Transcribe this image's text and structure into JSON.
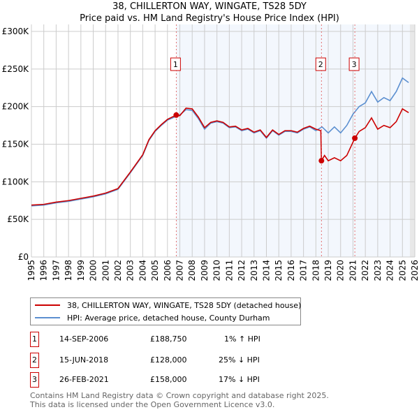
{
  "title": "38, CHILLERTON WAY, WINGATE, TS28 5DY",
  "subtitle": "Price paid vs. HM Land Registry's House Price Index (HPI)",
  "chart_data": {
    "type": "line",
    "title": "38, CHILLERTON WAY, WINGATE, TS28 5DY",
    "ylim": [
      0,
      300000
    ],
    "xlim": [
      1995,
      2026
    ],
    "y_ticks": [
      {
        "v": 0,
        "label": "£0"
      },
      {
        "v": 50000,
        "label": "£50K"
      },
      {
        "v": 100000,
        "label": "£100K"
      },
      {
        "v": 150000,
        "label": "£150K"
      },
      {
        "v": 200000,
        "label": "£200K"
      },
      {
        "v": 250000,
        "label": "£250K"
      },
      {
        "v": 300000,
        "label": "£300K"
      }
    ],
    "x_ticks": [
      "1995",
      "1996",
      "1997",
      "1998",
      "1999",
      "2000",
      "2001",
      "2002",
      "2003",
      "2004",
      "2005",
      "2006",
      "2007",
      "2008",
      "2009",
      "2010",
      "2011",
      "2012",
      "2013",
      "2014",
      "2015",
      "2016",
      "2017",
      "2018",
      "2019",
      "2020",
      "2021",
      "2022",
      "2023",
      "2024",
      "2025",
      "2026"
    ],
    "grid": true,
    "series": [
      {
        "name": "38, CHILLERTON WAY, WINGATE, TS28 5DY (detached house)",
        "color": "#cc0000",
        "x": [
          1995,
          1996,
          1997,
          1998,
          1999,
          2000,
          2001,
          2002,
          2003,
          2004,
          2004.5,
          2005,
          2005.5,
          2006,
          2006.7,
          2007,
          2007.5,
          2008,
          2008.5,
          2009,
          2009.5,
          2010,
          2010.5,
          2011,
          2011.5,
          2012,
          2012.5,
          2013,
          2013.5,
          2014,
          2014.5,
          2015,
          2015.5,
          2016,
          2016.5,
          2017,
          2017.5,
          2018,
          2018.4,
          2018.45,
          2018.7,
          2019,
          2019.5,
          2020,
          2020.5,
          2021.15,
          2021.5,
          2022,
          2022.5,
          2023,
          2023.5,
          2024,
          2024.5,
          2025,
          2025.5
        ],
        "y": [
          69000,
          70000,
          73000,
          75000,
          78000,
          81000,
          85000,
          91000,
          113000,
          136000,
          156000,
          168000,
          176000,
          183000,
          188750,
          188000,
          198000,
          197000,
          186000,
          172000,
          179000,
          181000,
          179000,
          173000,
          174000,
          169000,
          171000,
          166000,
          169000,
          159000,
          169000,
          163000,
          168000,
          168000,
          166000,
          171000,
          174000,
          170000,
          168000,
          128000,
          135000,
          128000,
          132000,
          128000,
          135000,
          158000,
          167000,
          172000,
          185000,
          170000,
          175000,
          172000,
          180000,
          197000,
          192000
        ]
      },
      {
        "name": "HPI: Average price, detached house, County Durham",
        "color": "#5b8fd0",
        "x": [
          1995,
          1996,
          1997,
          1998,
          1999,
          2000,
          2001,
          2002,
          2003,
          2004,
          2004.5,
          2005,
          2005.5,
          2006,
          2006.7,
          2007,
          2007.5,
          2008,
          2008.5,
          2009,
          2009.5,
          2010,
          2010.5,
          2011,
          2011.5,
          2012,
          2012.5,
          2013,
          2013.5,
          2014,
          2014.5,
          2015,
          2015.5,
          2016,
          2016.5,
          2017,
          2017.5,
          2018,
          2018.5,
          2019,
          2019.5,
          2020,
          2020.5,
          2021,
          2021.5,
          2022,
          2022.5,
          2023,
          2023.5,
          2024,
          2024.5,
          2025,
          2025.5
        ],
        "y": [
          68000,
          69000,
          72000,
          74000,
          77000,
          80000,
          84000,
          90000,
          112000,
          135000,
          155000,
          167000,
          175000,
          182000,
          187000,
          189000,
          196000,
          195000,
          184000,
          170000,
          178000,
          180000,
          178000,
          172000,
          173000,
          168000,
          170000,
          165000,
          168000,
          158000,
          168000,
          162000,
          167000,
          167000,
          165000,
          170000,
          173000,
          168000,
          173000,
          165000,
          173000,
          165000,
          175000,
          190000,
          200000,
          205000,
          220000,
          206000,
          212000,
          208000,
          220000,
          238000,
          232000
        ]
      }
    ],
    "sales": [
      {
        "label": "1",
        "x": 2006.71,
        "y": 188750
      },
      {
        "label": "2",
        "x": 2018.45,
        "y": 128000
      },
      {
        "label": "3",
        "x": 2021.15,
        "y": 158000
      }
    ]
  },
  "legend": [
    {
      "label": "38, CHILLERTON WAY, WINGATE, TS28 5DY (detached house)",
      "color": "#cc0000"
    },
    {
      "label": "HPI: Average price, detached house, County Durham",
      "color": "#5b8fd0"
    }
  ],
  "transactions": [
    {
      "num": "1",
      "date": "14-SEP-2006",
      "price": "£188,750",
      "hpi": "1% ↑ HPI"
    },
    {
      "num": "2",
      "date": "15-JUN-2018",
      "price": "£128,000",
      "hpi": "25% ↓ HPI"
    },
    {
      "num": "3",
      "date": "26-FEB-2021",
      "price": "£158,000",
      "hpi": "17% ↓ HPI"
    }
  ],
  "footer": [
    "Contains HM Land Registry data © Crown copyright and database right 2025.",
    "This data is licensed under the Open Government Licence v3.0."
  ]
}
